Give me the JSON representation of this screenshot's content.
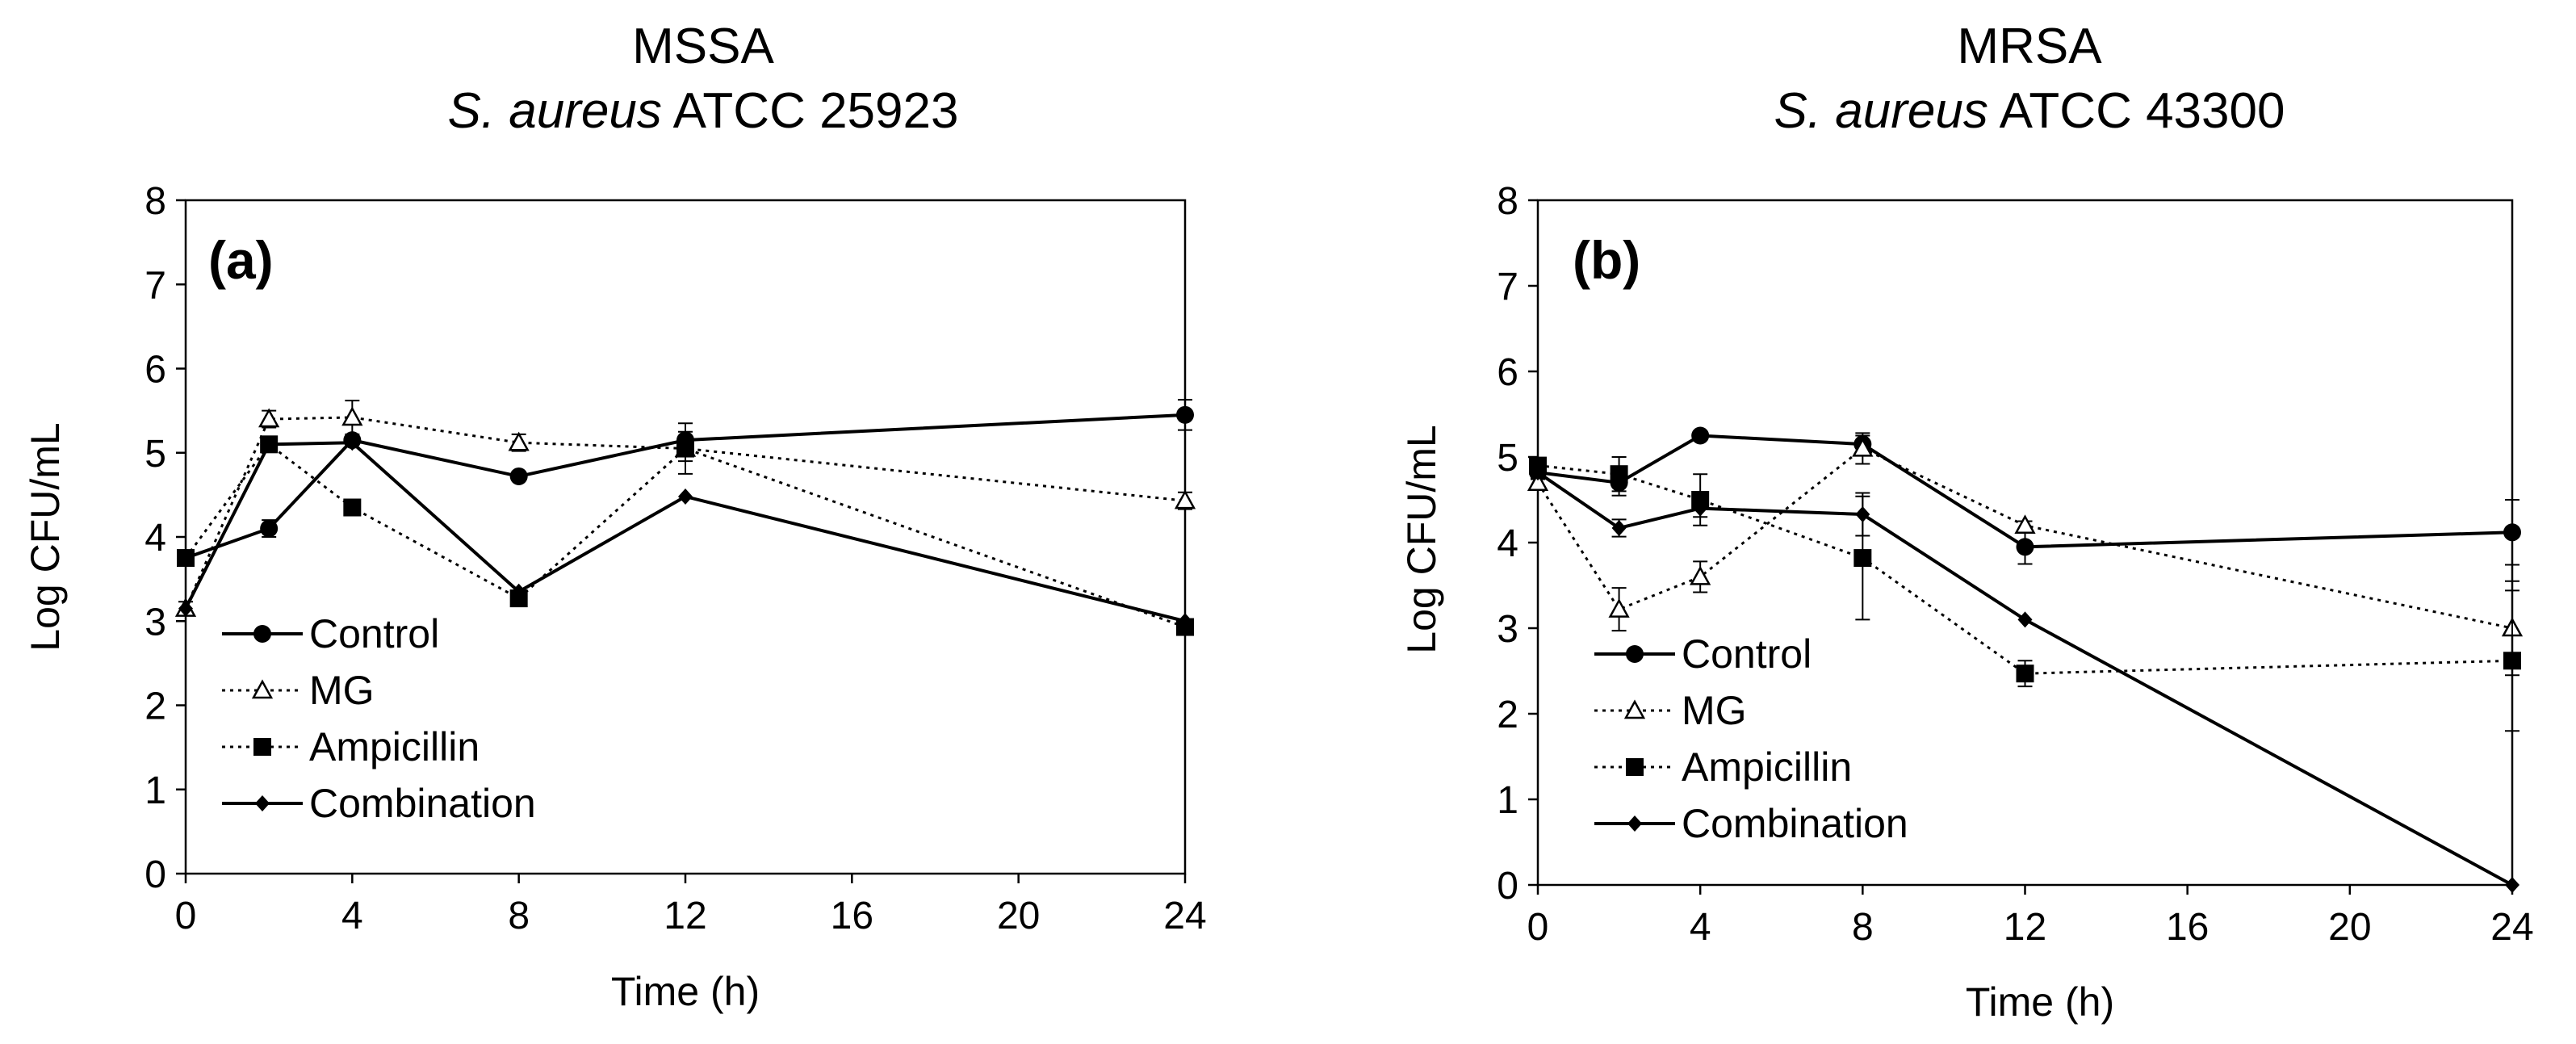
{
  "chart_data": [
    {
      "type": "line",
      "panel_label": "(a)",
      "title": "MSSA",
      "subtitle": {
        "italic": "S. aureus",
        "plain": " ATCC 25923"
      },
      "xlabel": "Time (h)",
      "ylabel": "Log CFU/mL",
      "xlim": [
        0,
        24
      ],
      "ylim": [
        0,
        8
      ],
      "xticks": [
        "0",
        "4",
        "8",
        "12",
        "16",
        "20",
        "24"
      ],
      "yticks": [
        "0",
        "1",
        "2",
        "3",
        "4",
        "5",
        "6",
        "7",
        "8"
      ],
      "legend_position": "lower-left",
      "x": [
        0,
        2,
        4,
        8,
        12,
        24
      ],
      "series": [
        {
          "name": "Control",
          "marker": "circle",
          "line": "solid",
          "values": [
            3.75,
            4.1,
            5.15,
            4.72,
            5.15,
            5.45
          ],
          "errors": [
            0.05,
            0.1,
            0.05,
            0.05,
            0.1,
            0.18
          ]
        },
        {
          "name": "MG",
          "marker": "triangle-open",
          "line": "dotted",
          "values": [
            3.15,
            5.4,
            5.42,
            5.12,
            5.05,
            4.43
          ],
          "errors": [
            0.08,
            0.1,
            0.2,
            0.1,
            0.15,
            0.1
          ]
        },
        {
          "name": "Ampicillin",
          "marker": "square",
          "line": "dotted",
          "values": [
            3.75,
            5.1,
            4.35,
            3.27,
            5.05,
            2.93
          ],
          "errors": [
            0.05,
            0.08,
            0.05,
            0.08,
            0.3,
            0.08
          ]
        },
        {
          "name": "Combination",
          "marker": "diamond",
          "line": "solid",
          "values": [
            3.15,
            5.1,
            5.12,
            3.35,
            4.48,
            3.0
          ],
          "errors": [
            0,
            0,
            0,
            0,
            0,
            0
          ]
        }
      ]
    },
    {
      "type": "line",
      "panel_label": "(b)",
      "title": "MRSA",
      "subtitle": {
        "italic": "S. aureus",
        "plain": " ATCC 43300"
      },
      "xlabel": "Time (h)",
      "ylabel": "Log CFU/mL",
      "xlim": [
        0,
        24
      ],
      "ylim": [
        0,
        8
      ],
      "xticks": [
        "0",
        "4",
        "8",
        "12",
        "16",
        "20",
        "24"
      ],
      "yticks": [
        "0",
        "1",
        "2",
        "3",
        "4",
        "5",
        "6",
        "7",
        "8"
      ],
      "legend_position": "lower-left",
      "x": [
        0,
        2,
        4,
        8,
        12,
        24
      ],
      "series": [
        {
          "name": "Control",
          "marker": "circle",
          "line": "solid",
          "values": [
            4.82,
            4.7,
            5.25,
            5.15,
            3.95,
            4.12
          ],
          "errors": [
            0.08,
            0.15,
            0.05,
            0.1,
            0.2,
            0.38
          ]
        },
        {
          "name": "MG",
          "marker": "triangle-open",
          "line": "dotted",
          "values": [
            4.7,
            3.22,
            3.6,
            5.1,
            4.2,
            3.0
          ],
          "errors": [
            0.05,
            0.25,
            0.18,
            0.18,
            0.05,
            0.55
          ]
        },
        {
          "name": "Ampicillin",
          "marker": "square",
          "line": "dotted",
          "values": [
            4.9,
            4.8,
            4.5,
            3.82,
            2.47,
            2.62
          ],
          "errors": [
            0.05,
            0.2,
            0.3,
            0.72,
            0.15,
            0.82
          ]
        },
        {
          "name": "Combination",
          "marker": "diamond",
          "line": "solid",
          "values": [
            4.82,
            4.17,
            4.4,
            4.33,
            3.1,
            0.0
          ],
          "errors": [
            0,
            0.1,
            0.1,
            0.25,
            0,
            0
          ]
        }
      ]
    }
  ]
}
